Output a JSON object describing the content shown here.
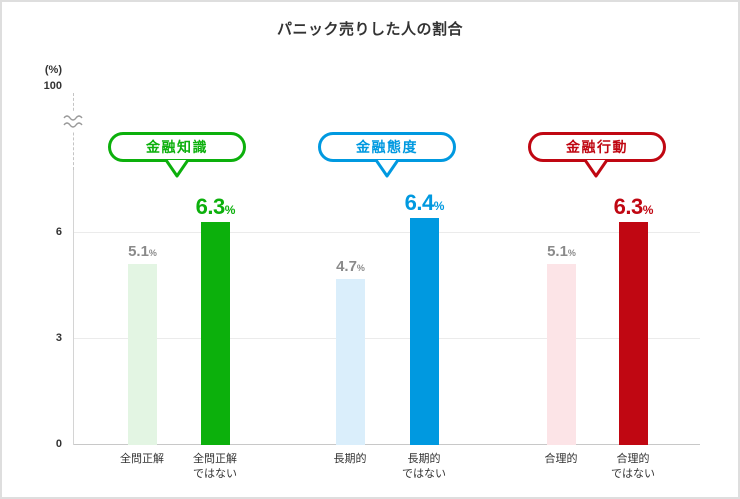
{
  "title": "パニック売りした人の割合",
  "colors": {
    "value_label_muted": "#8a8a8a"
  },
  "chart_data": {
    "type": "bar",
    "title": "パニック売りした人の割合",
    "unit": "%",
    "y_axis_unit_label": "(%)",
    "y_axis_break_top_label": "100",
    "ylim": [
      0,
      100
    ],
    "axis_break": true,
    "yticks": [
      0,
      3,
      6
    ],
    "ytick_labels_top_to_bottom": [
      "6",
      "3",
      "0"
    ],
    "grid": true,
    "legend": false,
    "groups": [
      {
        "name": "金融知識",
        "color": "#0cb00c",
        "light_color": "#e3f5e3",
        "bars": [
          {
            "label": "全問正解",
            "label_display": "全問正解",
            "value": 5.1,
            "emphasis": false
          },
          {
            "label": "全問正解ではない",
            "label_display": "全問正解\nではない",
            "value": 6.3,
            "emphasis": true
          }
        ]
      },
      {
        "name": "金融態度",
        "color": "#0099e0",
        "light_color": "#daeefb",
        "bars": [
          {
            "label": "長期的",
            "label_display": "長期的",
            "value": 4.7,
            "emphasis": false
          },
          {
            "label": "長期的ではない",
            "label_display": "長期的\nではない",
            "value": 6.4,
            "emphasis": true
          }
        ]
      },
      {
        "name": "金融行動",
        "color": "#c00712",
        "light_color": "#fce4e7",
        "bars": [
          {
            "label": "合理的",
            "label_display": "合理的",
            "value": 5.1,
            "emphasis": false
          },
          {
            "label": "合理的ではない",
            "label_display": "合理的\nではない",
            "value": 6.3,
            "emphasis": true
          }
        ]
      }
    ]
  }
}
